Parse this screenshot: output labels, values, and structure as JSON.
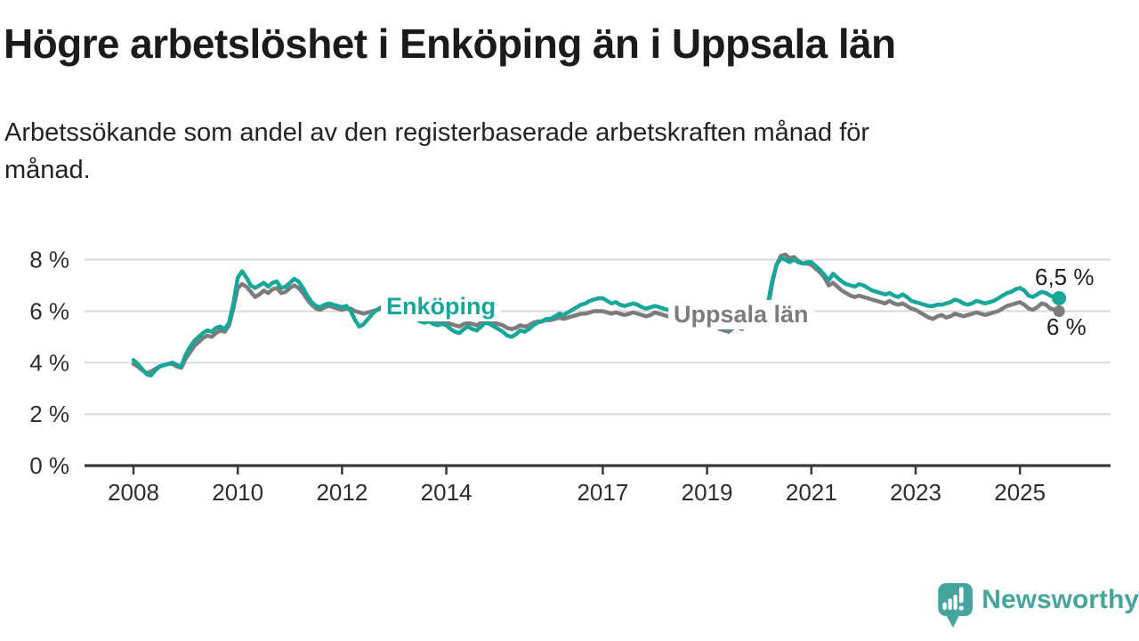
{
  "header": {
    "title": "Högre arbetslöshet i Enköping än i Uppsala län",
    "subtitle": "Arbetssökande som andel av den registerbaserade arbetskraften månad för månad.",
    "subtitle_line1": "Arbetssökande som andel av den registerbaserade arbetskraften månad för",
    "subtitle_line2": "månad."
  },
  "chart": {
    "y_axis": {
      "ticks": [
        {
          "value": 0,
          "label": "0 %"
        },
        {
          "value": 2,
          "label": "2 %"
        },
        {
          "value": 4,
          "label": "4 %"
        },
        {
          "value": 6,
          "label": "6 %"
        },
        {
          "value": 8,
          "label": "8 %"
        }
      ]
    },
    "x_axis": {
      "ticks": [
        {
          "year": 2008,
          "label": "2008"
        },
        {
          "year": 2010,
          "label": "2010"
        },
        {
          "year": 2012,
          "label": "2012"
        },
        {
          "year": 2014,
          "label": "2014"
        },
        {
          "year": 2017,
          "label": "2017"
        },
        {
          "year": 2019,
          "label": "2019"
        },
        {
          "year": 2021,
          "label": "2021"
        },
        {
          "year": 2023,
          "label": "2023"
        },
        {
          "year": 2025,
          "label": "2025"
        }
      ]
    },
    "series_labels": {
      "enkoping": "Enköping",
      "uppsala": "Uppsala län"
    },
    "annotations": {
      "enkoping_last": "6,5 %",
      "uppsala_last": "6 %"
    },
    "colors": {
      "enkoping": "#17a69a",
      "uppsala": "#7c7c7c",
      "grid": "#d9d9d9",
      "axis": "#3a3a3a",
      "tick_text": "#2d2d2d",
      "logo_teal": "#45a59e"
    }
  },
  "chart_data": {
    "type": "line",
    "title": "Högre arbetslöshet i Enköping än i Uppsala län",
    "subtitle": "Arbetssökande som andel av den registerbaserade arbetskraften månad för månad.",
    "unit": "%",
    "x_start_year": 2008,
    "x_interval": "monthly",
    "x_last_point": "2025-10",
    "n_points": 214,
    "ylim": [
      0,
      8.6
    ],
    "xlim": [
      2007.1,
      2026.7
    ],
    "grid": true,
    "legend_position": "inline-labels",
    "series": [
      {
        "name": "Uppsala län",
        "color": "#7c7c7c",
        "last_value_label": "6 %",
        "values": [
          3.95,
          3.85,
          3.7,
          3.6,
          3.65,
          3.75,
          3.85,
          3.9,
          3.95,
          3.95,
          3.85,
          3.8,
          4.15,
          4.4,
          4.65,
          4.8,
          4.95,
          5.05,
          5.0,
          5.15,
          5.25,
          5.2,
          5.45,
          6.1,
          6.9,
          7.05,
          6.95,
          6.75,
          6.55,
          6.65,
          6.8,
          6.7,
          6.85,
          6.9,
          6.7,
          6.75,
          6.9,
          7.0,
          6.9,
          6.7,
          6.45,
          6.25,
          6.1,
          6.05,
          6.15,
          6.2,
          6.15,
          6.1,
          6.05,
          6.1,
          6.1,
          6.0,
          5.95,
          5.9,
          5.95,
          6.0,
          6.05,
          6.1,
          6.05,
          6.0,
          6.0,
          6.05,
          6.0,
          5.9,
          5.8,
          5.75,
          5.7,
          5.65,
          5.7,
          5.65,
          5.6,
          5.65,
          5.6,
          5.5,
          5.45,
          5.4,
          5.5,
          5.55,
          5.5,
          5.45,
          5.55,
          5.65,
          5.6,
          5.55,
          5.5,
          5.45,
          5.35,
          5.3,
          5.35,
          5.45,
          5.4,
          5.45,
          5.55,
          5.6,
          5.6,
          5.65,
          5.65,
          5.7,
          5.75,
          5.7,
          5.75,
          5.8,
          5.85,
          5.9,
          5.9,
          5.95,
          6.0,
          6.0,
          6.0,
          5.95,
          5.9,
          5.95,
          5.9,
          5.85,
          5.9,
          5.95,
          5.9,
          5.85,
          5.8,
          5.85,
          5.95,
          5.9,
          5.85,
          5.8,
          5.75,
          5.8,
          5.85,
          5.8,
          5.7,
          5.6,
          5.55,
          5.6,
          5.9,
          5.6,
          5.4,
          5.3,
          5.25,
          5.2,
          5.35,
          5.4,
          5.3,
          5.45,
          5.5,
          5.55,
          5.65,
          5.6,
          6.1,
          7.1,
          7.8,
          8.15,
          8.2,
          8.05,
          8.1,
          7.95,
          7.85,
          7.85,
          7.8,
          7.65,
          7.5,
          7.3,
          7.0,
          7.1,
          6.95,
          6.8,
          6.7,
          6.6,
          6.55,
          6.6,
          6.55,
          6.5,
          6.45,
          6.4,
          6.35,
          6.3,
          6.4,
          6.3,
          6.25,
          6.3,
          6.2,
          6.1,
          6.05,
          5.95,
          5.85,
          5.75,
          5.7,
          5.8,
          5.85,
          5.75,
          5.8,
          5.9,
          5.85,
          5.8,
          5.85,
          5.9,
          5.95,
          5.9,
          5.85,
          5.9,
          5.95,
          6.0,
          6.1,
          6.2,
          6.25,
          6.3,
          6.35,
          6.25,
          6.1,
          6.05,
          6.15,
          6.3,
          6.25,
          6.1,
          6.05,
          6.0
        ]
      },
      {
        "name": "Enköping",
        "color": "#17a69a",
        "last_value_label": "6,5 %",
        "values": [
          4.1,
          3.95,
          3.75,
          3.55,
          3.5,
          3.7,
          3.85,
          3.9,
          3.95,
          4.0,
          3.9,
          3.85,
          4.3,
          4.6,
          4.85,
          5.0,
          5.15,
          5.25,
          5.2,
          5.35,
          5.4,
          5.3,
          5.55,
          6.3,
          7.3,
          7.55,
          7.3,
          7.0,
          6.9,
          7.0,
          7.1,
          6.95,
          7.1,
          7.15,
          6.9,
          6.95,
          7.1,
          7.25,
          7.15,
          6.9,
          6.6,
          6.35,
          6.2,
          6.15,
          6.25,
          6.3,
          6.25,
          6.2,
          6.15,
          6.2,
          6.0,
          5.65,
          5.4,
          5.5,
          5.7,
          5.9,
          6.05,
          6.15,
          6.1,
          6.05,
          6.15,
          6.2,
          6.1,
          5.95,
          5.8,
          5.7,
          5.6,
          5.55,
          5.6,
          5.5,
          5.45,
          5.5,
          5.45,
          5.3,
          5.2,
          5.15,
          5.3,
          5.4,
          5.3,
          5.25,
          5.4,
          5.55,
          5.5,
          5.4,
          5.3,
          5.2,
          5.05,
          5.0,
          5.1,
          5.25,
          5.2,
          5.3,
          5.45,
          5.55,
          5.6,
          5.7,
          5.7,
          5.8,
          5.9,
          5.85,
          5.95,
          6.05,
          6.15,
          6.25,
          6.3,
          6.4,
          6.45,
          6.5,
          6.5,
          6.4,
          6.3,
          6.35,
          6.25,
          6.2,
          6.25,
          6.3,
          6.25,
          6.15,
          6.1,
          6.15,
          6.2,
          6.15,
          6.1,
          6.05,
          6.0,
          6.05,
          6.1,
          6.05,
          5.95,
          5.9,
          5.95,
          6.05,
          6.3,
          5.9,
          5.6,
          5.45,
          5.35,
          5.3,
          5.45,
          5.5,
          5.4,
          5.55,
          5.65,
          5.75,
          5.9,
          5.85,
          6.3,
          7.2,
          7.8,
          8.05,
          8.0,
          7.9,
          8.0,
          7.9,
          7.85,
          7.9,
          7.9,
          7.75,
          7.6,
          7.4,
          7.2,
          7.45,
          7.3,
          7.15,
          7.05,
          7.0,
          6.95,
          7.05,
          7.0,
          6.9,
          6.8,
          6.75,
          6.7,
          6.65,
          6.7,
          6.6,
          6.55,
          6.65,
          6.55,
          6.4,
          6.35,
          6.3,
          6.25,
          6.2,
          6.2,
          6.25,
          6.25,
          6.3,
          6.35,
          6.45,
          6.4,
          6.3,
          6.25,
          6.3,
          6.4,
          6.35,
          6.3,
          6.35,
          6.4,
          6.5,
          6.6,
          6.7,
          6.75,
          6.85,
          6.9,
          6.8,
          6.6,
          6.55,
          6.65,
          6.75,
          6.7,
          6.6,
          6.55,
          6.5
        ]
      }
    ]
  },
  "footer": {
    "brand": "Newsworthy"
  }
}
